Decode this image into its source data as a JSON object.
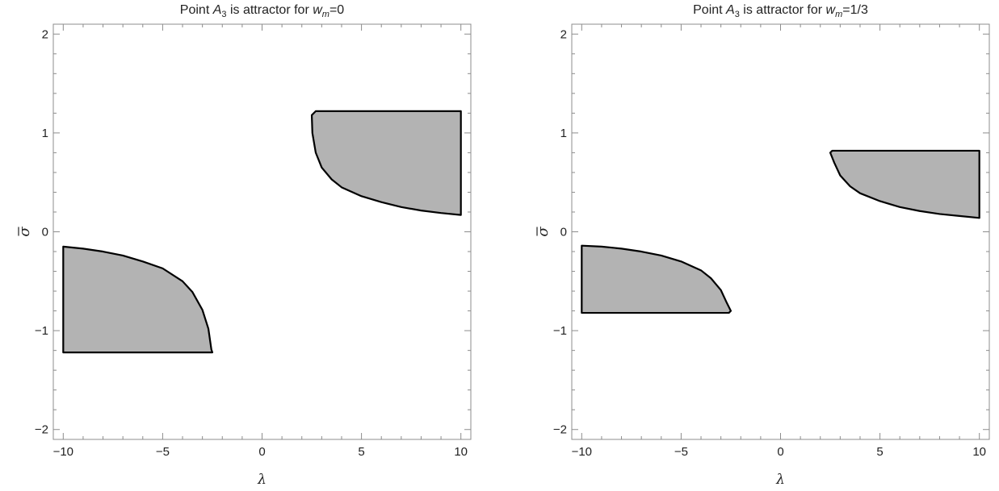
{
  "chart_data": [
    {
      "type": "area",
      "title_text": "Point ",
      "title_sym": "A",
      "title_sub": "3",
      "title_mid": " is attractor for ",
      "title_w": "w",
      "title_wsub": "m",
      "title_end": "=0",
      "xlabel": "λ",
      "ylabel": "σ",
      "xlim": [
        -10.5,
        10.5
      ],
      "ylim": [
        -2.1,
        2.1
      ],
      "xticks": [
        -10,
        -5,
        0,
        5,
        10
      ],
      "yticks": [
        -2,
        -1,
        0,
        1,
        2
      ],
      "xtick_labels": [
        "−10",
        "−5",
        "0",
        "5",
        "10"
      ],
      "ytick_labels": [
        "−2",
        "−1",
        "0",
        "1",
        "2"
      ],
      "sigma_max": 1.22,
      "fill_color": "#b3b3b3",
      "edge_color": "#000000",
      "regions": [
        {
          "name": "upper-region",
          "points": [
            [
              2.5,
              1.18
            ],
            [
              2.53,
              1.0
            ],
            [
              2.7,
              0.8
            ],
            [
              3.0,
              0.65
            ],
            [
              3.5,
              0.53
            ],
            [
              4.0,
              0.45
            ],
            [
              5.0,
              0.36
            ],
            [
              6.0,
              0.3
            ],
            [
              7.0,
              0.25
            ],
            [
              8.0,
              0.215
            ],
            [
              9.0,
              0.19
            ],
            [
              10.0,
              0.17
            ],
            [
              10.0,
              1.22
            ],
            [
              2.7,
              1.22
            ]
          ]
        },
        {
          "name": "lower-region",
          "points": [
            [
              -10.0,
              -0.15
            ],
            [
              -9.0,
              -0.17
            ],
            [
              -8.0,
              -0.2
            ],
            [
              -7.0,
              -0.24
            ],
            [
              -6.0,
              -0.3
            ],
            [
              -5.0,
              -0.37
            ],
            [
              -4.0,
              -0.5
            ],
            [
              -3.5,
              -0.61
            ],
            [
              -3.0,
              -0.79
            ],
            [
              -2.7,
              -0.98
            ],
            [
              -2.55,
              -1.19
            ],
            [
              -2.5,
              -1.22
            ],
            [
              -10.0,
              -1.22
            ]
          ]
        }
      ]
    },
    {
      "type": "area",
      "title_text": "Point ",
      "title_sym": "A",
      "title_sub": "3",
      "title_mid": " is attractor for ",
      "title_w": "w",
      "title_wsub": "m",
      "title_end": "=1/3",
      "xlabel": "λ",
      "ylabel": "σ",
      "xlim": [
        -10.5,
        10.5
      ],
      "ylim": [
        -2.1,
        2.1
      ],
      "xticks": [
        -10,
        -5,
        0,
        5,
        10
      ],
      "yticks": [
        -2,
        -1,
        0,
        1,
        2
      ],
      "xtick_labels": [
        "−10",
        "−5",
        "0",
        "5",
        "10"
      ],
      "ytick_labels": [
        "−2",
        "−1",
        "0",
        "1",
        "2"
      ],
      "sigma_max": 0.82,
      "fill_color": "#b3b3b3",
      "edge_color": "#000000",
      "regions": [
        {
          "name": "upper-region",
          "points": [
            [
              2.5,
              0.8
            ],
            [
              2.7,
              0.7
            ],
            [
              3.0,
              0.57
            ],
            [
              3.5,
              0.46
            ],
            [
              4.0,
              0.39
            ],
            [
              5.0,
              0.31
            ],
            [
              6.0,
              0.25
            ],
            [
              7.0,
              0.21
            ],
            [
              8.0,
              0.18
            ],
            [
              9.0,
              0.16
            ],
            [
              10.0,
              0.14
            ],
            [
              10.0,
              0.82
            ],
            [
              2.6,
              0.82
            ]
          ]
        },
        {
          "name": "lower-region",
          "points": [
            [
              -10.0,
              -0.14
            ],
            [
              -9.0,
              -0.15
            ],
            [
              -8.0,
              -0.17
            ],
            [
              -7.0,
              -0.2
            ],
            [
              -6.0,
              -0.24
            ],
            [
              -5.0,
              -0.3
            ],
            [
              -4.0,
              -0.39
            ],
            [
              -3.5,
              -0.47
            ],
            [
              -3.0,
              -0.59
            ],
            [
              -2.7,
              -0.72
            ],
            [
              -2.5,
              -0.8
            ],
            [
              -2.6,
              -0.82
            ],
            [
              -10.0,
              -0.82
            ]
          ]
        }
      ]
    }
  ]
}
